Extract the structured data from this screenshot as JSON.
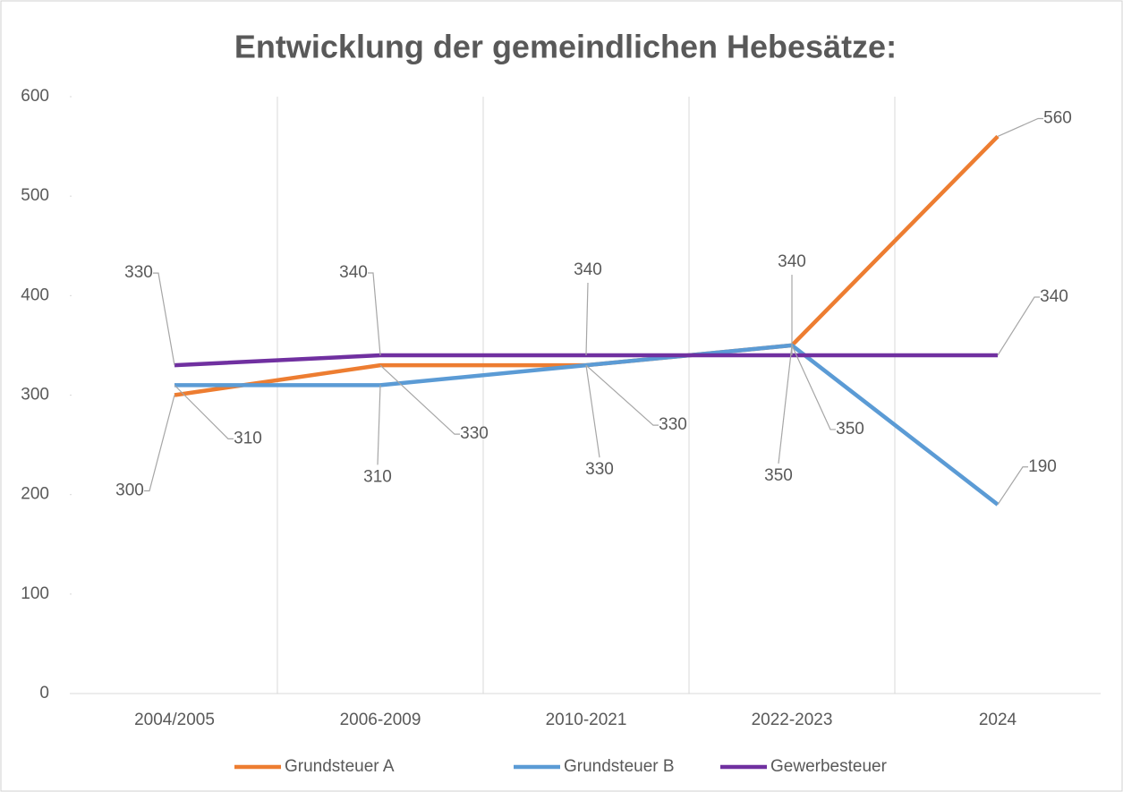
{
  "chart_data": {
    "type": "line",
    "title": "Entwicklung der gemeindlichen Hebesätze:",
    "categories": [
      "2004/2005",
      "2006-2009",
      "2010-2021",
      "2022-2023",
      "2024"
    ],
    "series": [
      {
        "name": "Grundsteuer A",
        "color": "#ED7D31",
        "values": [
          300,
          330,
          330,
          350,
          560
        ]
      },
      {
        "name": "Grundsteuer B",
        "color": "#5B9BD5",
        "values": [
          310,
          310,
          330,
          350,
          190
        ]
      },
      {
        "name": "Gewerbesteuer",
        "color": "#7030A0",
        "values": [
          330,
          340,
          340,
          340,
          340
        ]
      }
    ],
    "ylim": [
      0,
      600
    ],
    "yticks": [
      0,
      100,
      200,
      300,
      400,
      500,
      600
    ],
    "grid": true,
    "legend": "bottom",
    "data_labels": true
  }
}
